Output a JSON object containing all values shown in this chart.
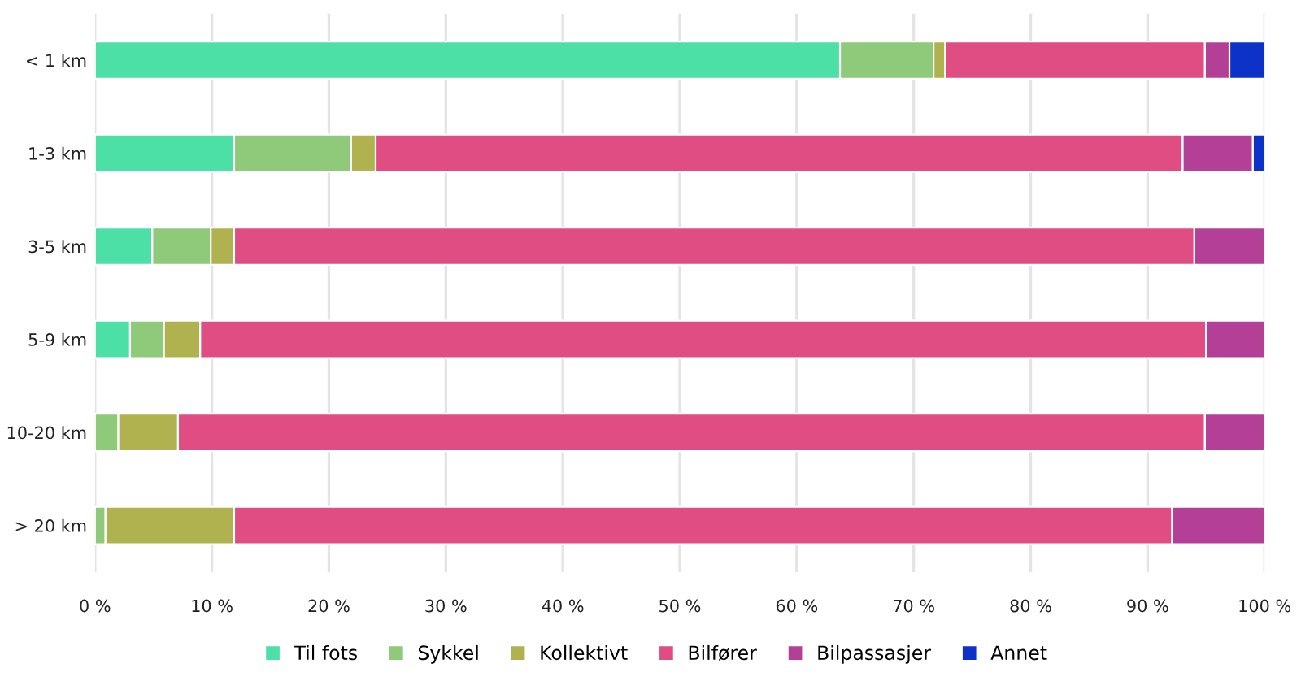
{
  "chart_data": {
    "type": "bar",
    "orientation": "horizontal",
    "stacked": true,
    "categories": [
      "< 1 km",
      "1-3 km",
      "3-5 km",
      "5-9 km",
      "10-20 km",
      "> 20 km"
    ],
    "series": [
      {
        "name": "Til fots",
        "color": "#4de0a6",
        "values": [
          63.7,
          11.9,
          4.9,
          3.0,
          0,
          0
        ]
      },
      {
        "name": "Sykkel",
        "color": "#8fca7a",
        "values": [
          8.0,
          10.0,
          5.0,
          2.9,
          2.0,
          0.9
        ]
      },
      {
        "name": "Kollektivt",
        "color": "#afb24f",
        "values": [
          1.0,
          2.1,
          2.0,
          3.1,
          5.1,
          11.0
        ]
      },
      {
        "name": "Bilfører",
        "color": "#e04d82",
        "values": [
          22.2,
          69.0,
          82.1,
          86.0,
          87.8,
          80.2
        ]
      },
      {
        "name": "Bilpassasjer",
        "color": "#b34096",
        "values": [
          2.1,
          6.0,
          6.0,
          5.0,
          5.1,
          7.9
        ]
      },
      {
        "name": "Annet",
        "color": "#0d32c8",
        "values": [
          3.0,
          1.0,
          0,
          0,
          0,
          0
        ]
      }
    ],
    "xlim": [
      0,
      100
    ],
    "xticks": [
      {
        "value": 0,
        "label": "0 %"
      },
      {
        "value": 10,
        "label": "10 %"
      },
      {
        "value": 20,
        "label": "20 %"
      },
      {
        "value": 30,
        "label": "30 %"
      },
      {
        "value": 40,
        "label": "40 %"
      },
      {
        "value": 50,
        "label": "50 %"
      },
      {
        "value": 60,
        "label": "60 %"
      },
      {
        "value": 70,
        "label": "70 %"
      },
      {
        "value": 80,
        "label": "80 %"
      },
      {
        "value": 90,
        "label": "90 %"
      },
      {
        "value": 100,
        "label": "100 %"
      }
    ],
    "grid": "x",
    "legend": "bottom"
  }
}
